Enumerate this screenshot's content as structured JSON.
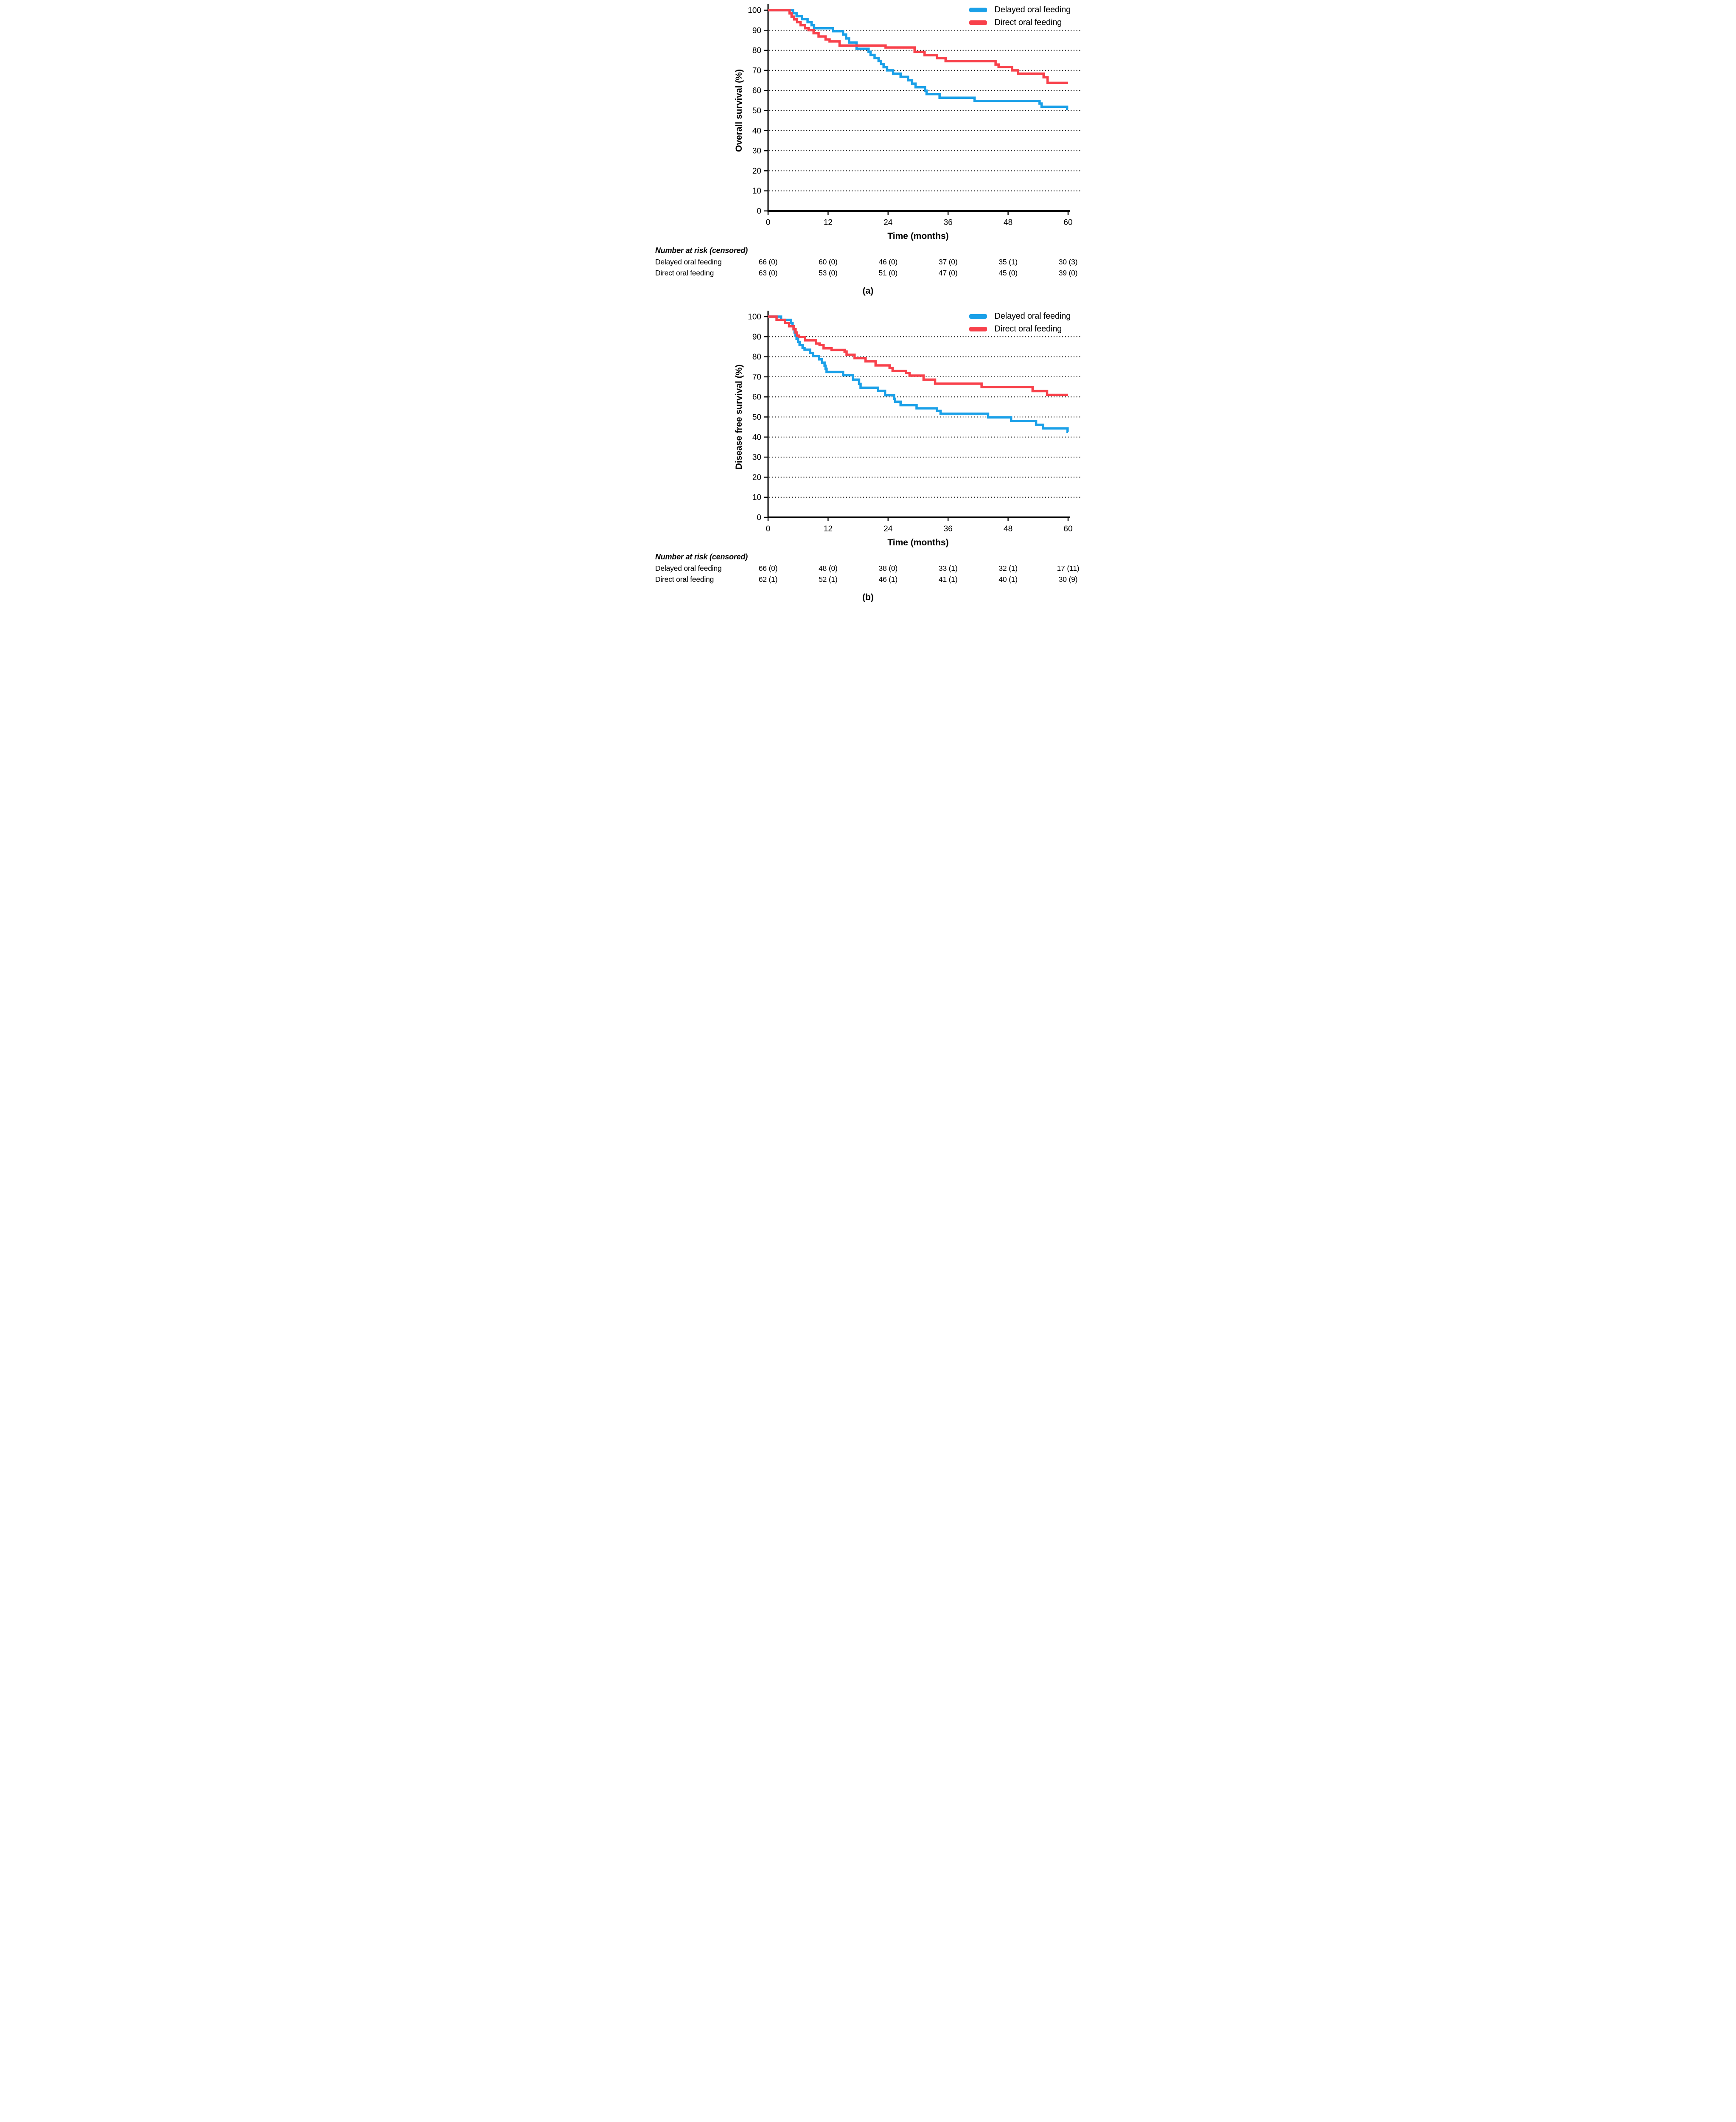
{
  "chart_data": [
    {
      "type": "line",
      "step": true,
      "title": "",
      "xlabel": "Time (months)",
      "ylabel": "Overall survival (%)",
      "xlim": [
        0,
        60
      ],
      "ylim": [
        0,
        100
      ],
      "xticks": [
        0,
        12,
        24,
        36,
        48,
        60
      ],
      "yticks": [
        0,
        10,
        20,
        30,
        40,
        50,
        60,
        70,
        80,
        90,
        100
      ],
      "grid": "dotted horizontal lines at 10-90",
      "legend_position": "top-right",
      "caption": "(a)",
      "series": [
        {
          "name": "Delayed oral feeding",
          "color": "#1AA0E8",
          "points": [
            [
              0,
              100
            ],
            [
              5,
              98.5
            ],
            [
              5.7,
              97
            ],
            [
              6.8,
              95.5
            ],
            [
              7.9,
              94
            ],
            [
              8.7,
              92.5
            ],
            [
              9.2,
              91
            ],
            [
              13,
              89.5
            ],
            [
              15,
              87.9
            ],
            [
              15.6,
              85.9
            ],
            [
              16.2,
              83.9
            ],
            [
              17.7,
              80.8
            ],
            [
              20.1,
              79.3
            ],
            [
              20.5,
              77.7
            ],
            [
              21.3,
              76.2
            ],
            [
              22.1,
              74.7
            ],
            [
              22.6,
              73.2
            ],
            [
              23.1,
              71.6
            ],
            [
              23.8,
              70
            ],
            [
              25,
              68.4
            ],
            [
              26.5,
              66.8
            ],
            [
              28,
              65.1
            ],
            [
              28.8,
              63.4
            ],
            [
              29.5,
              61.6
            ],
            [
              31.4,
              59.9
            ],
            [
              31.7,
              58.2
            ],
            [
              34.3,
              56.4
            ],
            [
              41.3,
              54.8
            ],
            [
              54.3,
              53.5
            ],
            [
              54.7,
              51.9
            ],
            [
              59.8,
              50.8
            ]
          ]
        },
        {
          "name": "Direct oral feeding",
          "color": "#F8414B",
          "points": [
            [
              0,
              100
            ],
            [
              4.3,
              98.4
            ],
            [
              4.7,
              96.8
            ],
            [
              5.2,
              95.4
            ],
            [
              5.8,
              94
            ],
            [
              6.5,
              92.5
            ],
            [
              7.4,
              91
            ],
            [
              8.1,
              90
            ],
            [
              9.1,
              88.5
            ],
            [
              10.1,
              86.9
            ],
            [
              11.5,
              85.4
            ],
            [
              12.3,
              84.4
            ],
            [
              14.3,
              82.4
            ],
            [
              23.5,
              81.4
            ],
            [
              29.3,
              79.2
            ],
            [
              31.3,
              77.6
            ],
            [
              33.8,
              76.1
            ],
            [
              35.5,
              74.6
            ],
            [
              45.5,
              72.9
            ],
            [
              46.1,
              71.7
            ],
            [
              48.8,
              70
            ],
            [
              50,
              68.4
            ],
            [
              55.1,
              66.6
            ],
            [
              55.9,
              63.8
            ]
          ]
        }
      ],
      "number_at_risk": {
        "header": "Number at risk (censored)",
        "times": [
          0,
          12,
          24,
          36,
          48,
          60
        ],
        "rows": [
          {
            "label": "Delayed oral feeding",
            "values": [
              "66 (0)",
              "60 (0)",
              "46 (0)",
              "37 (0)",
              "35 (1)",
              "30 (3)"
            ]
          },
          {
            "label": "Direct oral feeding",
            "values": [
              "63 (0)",
              "53 (0)",
              "51 (0)",
              "47 (0)",
              "45 (0)",
              "39 (0)"
            ]
          }
        ]
      }
    },
    {
      "type": "line",
      "step": true,
      "title": "",
      "xlabel": "Time (months)",
      "ylabel": "Disease free survival (%)",
      "xlim": [
        0,
        60
      ],
      "ylim": [
        0,
        100
      ],
      "xticks": [
        0,
        12,
        24,
        36,
        48,
        60
      ],
      "yticks": [
        0,
        10,
        20,
        30,
        40,
        50,
        60,
        70,
        80,
        90,
        100
      ],
      "grid": "dotted horizontal lines at 10-90",
      "legend_position": "top-right",
      "caption": "(b)",
      "series": [
        {
          "name": "Delayed oral feeding",
          "color": "#1AA0E8",
          "points": [
            [
              0,
              100
            ],
            [
              2.6,
              98.4
            ],
            [
              4.6,
              96.8
            ],
            [
              4.9,
              95.2
            ],
            [
              5.1,
              93.7
            ],
            [
              5.3,
              92.1
            ],
            [
              5.5,
              90.5
            ],
            [
              5.7,
              88.9
            ],
            [
              6,
              87.4
            ],
            [
              6.3,
              85.8
            ],
            [
              6.9,
              84.3
            ],
            [
              7.3,
              83.5
            ],
            [
              8.4,
              81.9
            ],
            [
              9,
              80.3
            ],
            [
              10.2,
              78.7
            ],
            [
              10.8,
              77.1
            ],
            [
              11.3,
              75.5
            ],
            [
              11.5,
              74
            ],
            [
              11.7,
              72.4
            ],
            [
              15,
              70.8
            ],
            [
              17,
              68.6
            ],
            [
              18.2,
              66.5
            ],
            [
              18.5,
              64.6
            ],
            [
              22,
              63
            ],
            [
              23.4,
              60.8
            ],
            [
              25.2,
              59.1
            ],
            [
              25.4,
              57.6
            ],
            [
              26.5,
              55.9
            ],
            [
              29.7,
              54.3
            ],
            [
              33.8,
              53
            ],
            [
              34.5,
              51.6
            ],
            [
              44,
              49.8
            ],
            [
              48.6,
              48
            ],
            [
              53.6,
              46.1
            ],
            [
              55,
              44.3
            ],
            [
              59.9,
              42.6
            ]
          ]
        },
        {
          "name": "Direct oral feeding",
          "color": "#F8414B",
          "points": [
            [
              0,
              100
            ],
            [
              1.7,
              98.4
            ],
            [
              3.4,
              96.8
            ],
            [
              4.2,
              95.2
            ],
            [
              5.1,
              93.7
            ],
            [
              5.5,
              92.1
            ],
            [
              5.8,
              90.5
            ],
            [
              6.2,
              89.8
            ],
            [
              7.4,
              88.2
            ],
            [
              9.6,
              86.6
            ],
            [
              10.3,
              85.8
            ],
            [
              11.1,
              84.2
            ],
            [
              12.7,
              83.4
            ],
            [
              15.3,
              82.6
            ],
            [
              15.7,
              81
            ],
            [
              17.3,
              79.3
            ],
            [
              19.5,
              77.7
            ],
            [
              21.5,
              75.7
            ],
            [
              24.3,
              74.4
            ],
            [
              24.9,
              72.9
            ],
            [
              27.6,
              71.9
            ],
            [
              28.3,
              70.6
            ],
            [
              31.1,
              68.6
            ],
            [
              33.4,
              66.6
            ],
            [
              42.7,
              64.9
            ],
            [
              52.9,
              62.9
            ],
            [
              55.8,
              61
            ]
          ]
        }
      ],
      "number_at_risk": {
        "header": "Number at risk (censored)",
        "times": [
          0,
          12,
          24,
          36,
          48,
          60
        ],
        "rows": [
          {
            "label": "Delayed oral feeding",
            "values": [
              "66 (0)",
              "48 (0)",
              "38 (0)",
              "33 (1)",
              "32 (1)",
              "17 (11)"
            ]
          },
          {
            "label": "Direct oral feeding",
            "values": [
              "62 (1)",
              "52 (1)",
              "46 (1)",
              "41 (1)",
              "40 (1)",
              "30 (9)"
            ]
          }
        ]
      }
    }
  ]
}
